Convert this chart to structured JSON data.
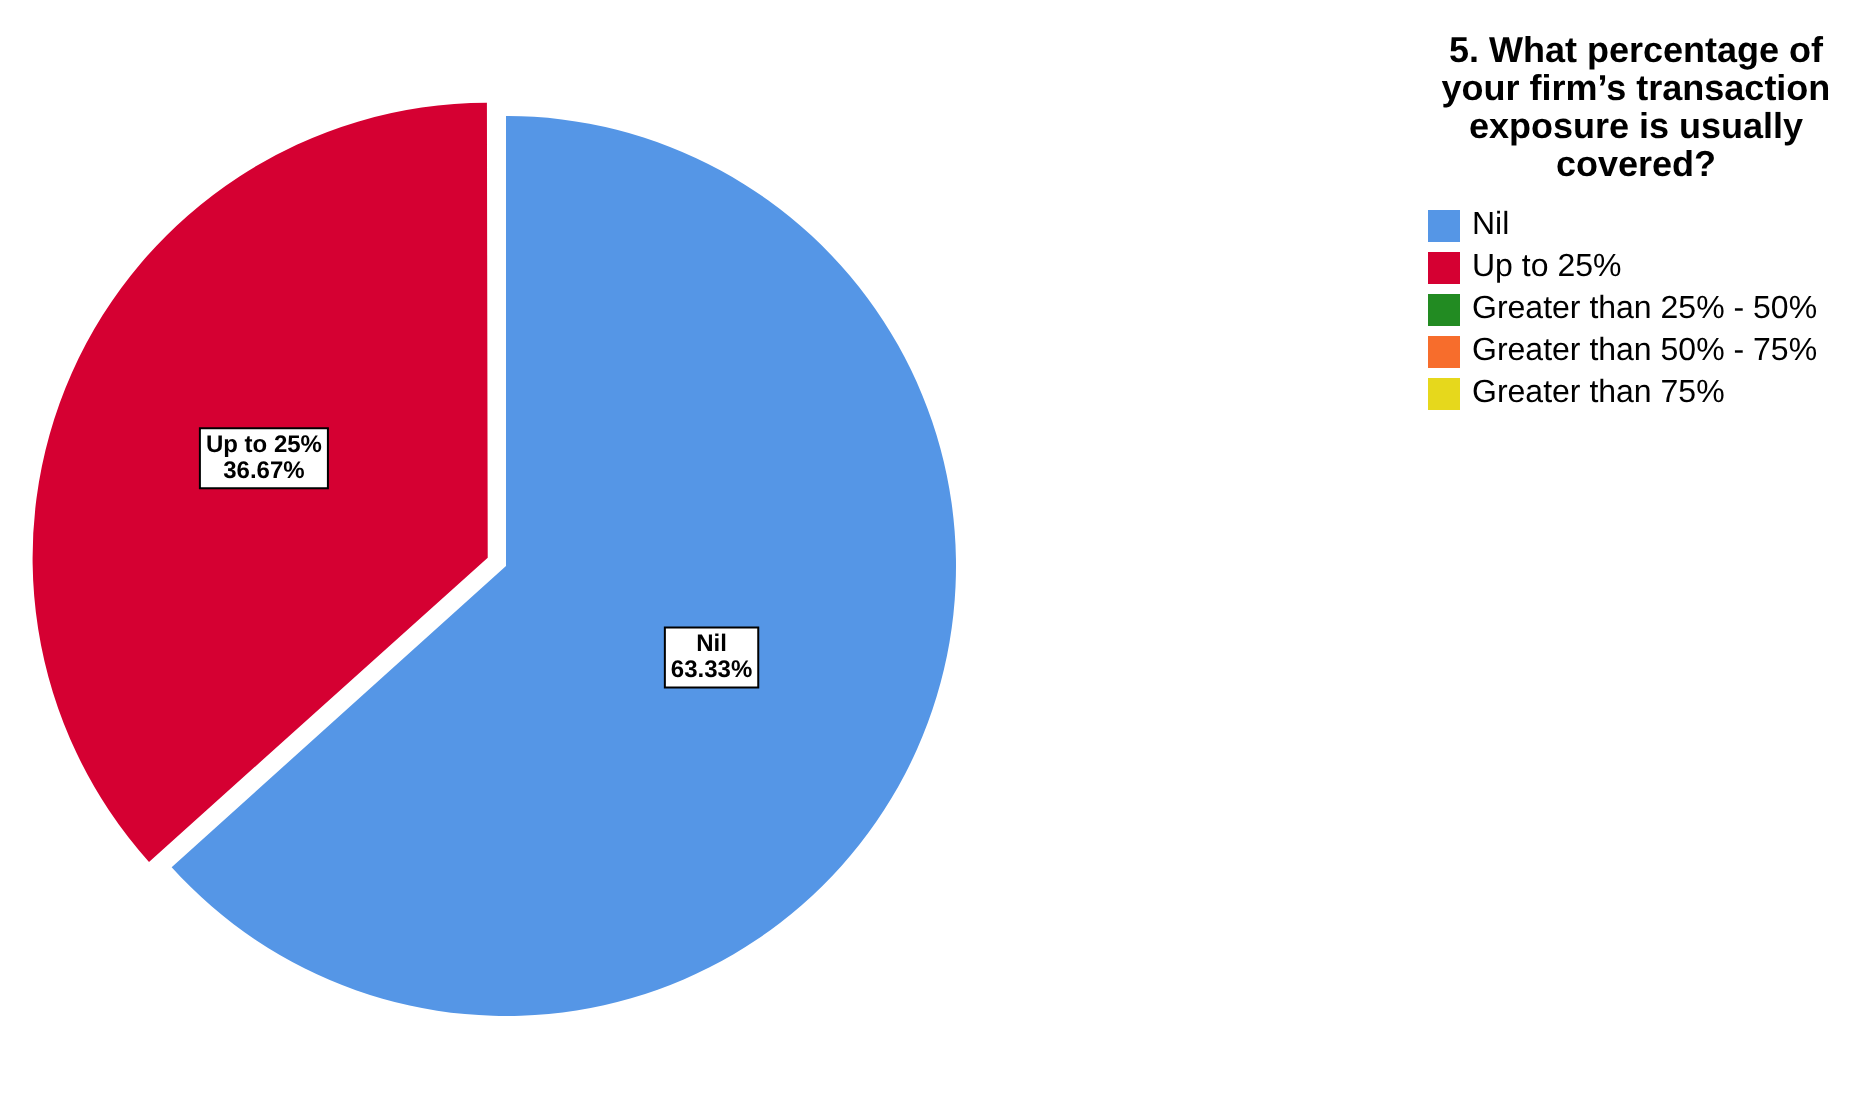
{
  "chart_data": {
    "type": "pie",
    "legend_title": "5. What percentage of your firm’s transaction exposure is usually covered?",
    "categories": [
      "Nil",
      "Up to 25%",
      "Greater than 25% - 50%",
      "Greater than 50% - 75%",
      "Greater than 75%"
    ],
    "values": [
      63.33,
      36.67,
      0,
      0,
      0
    ],
    "colors": [
      "#5596e6",
      "#d50032",
      "#228b22",
      "#f76d2c",
      "#e6d81c"
    ],
    "value_labels": [
      "63.33%",
      "36.67%",
      null,
      null,
      null
    ],
    "legend": "top right"
  }
}
